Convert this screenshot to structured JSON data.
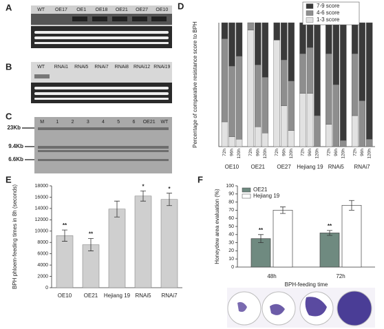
{
  "panels": {
    "A": {
      "letter": "A",
      "lanes": [
        "WT",
        "OE17",
        "OE1",
        "OE18",
        "OE21",
        "OE27",
        "OE10"
      ]
    },
    "B": {
      "letter": "B",
      "lanes": [
        "WT",
        "RNAi1",
        "RNAi5",
        "RNAi7",
        "RNAi8",
        "RNAi12",
        "RNAi19"
      ]
    },
    "C": {
      "letter": "C",
      "lanes": [
        "M",
        "1",
        "2",
        "3",
        "4",
        "5",
        "6",
        "OE21",
        "WT"
      ],
      "markers": [
        "23Kb",
        "9.4Kb",
        "6.6Kb"
      ]
    },
    "D": {
      "letter": "D"
    },
    "E": {
      "letter": "E"
    },
    "F": {
      "letter": "F"
    }
  },
  "chart_data": [
    {
      "type": "stacked-bar",
      "ylabel": "Percentage of comparative resistance score to BPH",
      "categories": [
        "72h",
        "96h",
        "120h",
        "72h",
        "96h",
        "120h",
        "72h",
        "96h",
        "120h",
        "72h",
        "96h",
        "120h",
        "72h",
        "96h",
        "120h",
        "72h",
        "96h",
        "120h"
      ],
      "groups": [
        "OE10",
        "OE21",
        "OE27",
        "Hejiang 19",
        "RNAi5",
        "RNAi7"
      ],
      "ylim": [
        0,
        100
      ],
      "series": [
        {
          "name": "1-3 score",
          "color": "#e2e2e2",
          "values": [
            20,
            8,
            6,
            94,
            16,
            11,
            86,
            33,
            13,
            43,
            43,
            0,
            18,
            0,
            0,
            25,
            0,
            0
          ]
        },
        {
          "name": "4-6 score",
          "color": "#8e8e8e",
          "values": [
            67,
            57,
            67,
            6,
            50,
            45,
            0,
            37,
            40,
            32,
            37,
            25,
            57,
            50,
            5,
            50,
            37,
            6
          ]
        },
        {
          "name": "7-9 score",
          "color": "#3a3a3a",
          "values": [
            13,
            35,
            27,
            0,
            34,
            44,
            14,
            30,
            47,
            25,
            20,
            75,
            25,
            50,
            95,
            25,
            63,
            94
          ]
        }
      ]
    },
    {
      "type": "bar",
      "ylabel": "BPH phloem-feeding times in 8h (seconds)",
      "categories": [
        "OE10",
        "OE21",
        "Hejiang 19",
        "RNAi5",
        "RNAi7"
      ],
      "values": [
        9200,
        7600,
        13900,
        16200,
        15600
      ],
      "errors": [
        1000,
        1100,
        1400,
        900,
        1100
      ],
      "annotations": [
        "**",
        "**",
        null,
        "*",
        "*"
      ],
      "color": "#cfcfcf",
      "ylim": [
        0,
        18000
      ],
      "yticks": [
        0,
        2000,
        4000,
        6000,
        8000,
        10000,
        12000,
        14000,
        16000,
        18000
      ]
    },
    {
      "type": "grouped-bar",
      "ylabel": "Honeydew area evaluation (%)",
      "xlabel": "BPH-feeding time",
      "categories": [
        "48h",
        "72h"
      ],
      "ylim": [
        0,
        100
      ],
      "yticks": [
        0,
        10,
        20,
        30,
        40,
        50,
        60,
        70,
        80,
        90,
        100
      ],
      "series": [
        {
          "name": "OE21",
          "color": "#6f8a80",
          "values": [
            35,
            42
          ],
          "errors": [
            5,
            3
          ],
          "annotations": [
            "**",
            "**"
          ]
        },
        {
          "name": "Hejiang 19",
          "color": "#ffffff",
          "values": [
            70,
            76
          ],
          "errors": [
            4,
            6
          ]
        }
      ]
    }
  ]
}
